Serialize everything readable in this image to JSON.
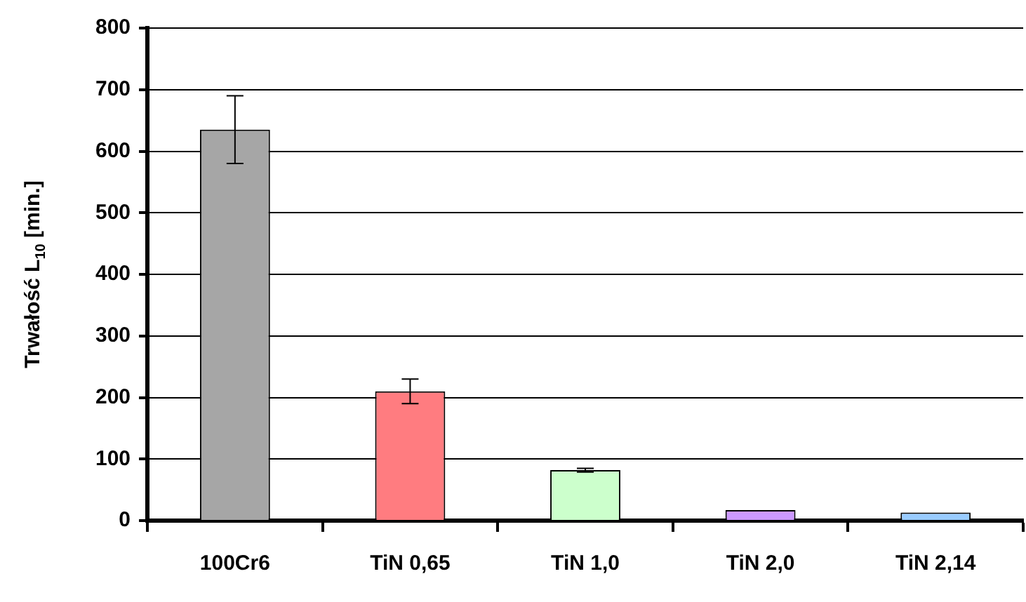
{
  "chart_data": {
    "type": "bar",
    "ylabel": "Trwałość L$_{10}$ [min.]",
    "categories": [
      "100Cr6",
      "TiN 0,65",
      "TiN 1,0",
      "TiN 2,0",
      "TiN 2,14"
    ],
    "values": [
      635,
      210,
      82,
      17,
      13
    ],
    "colors": [
      "#a6a6a6",
      "#ff7c80",
      "#ccffcc",
      "#cc99ff",
      "#99ccff"
    ],
    "errors": [
      55,
      20,
      3,
      null,
      null
    ],
    "ylim": [
      0,
      800
    ],
    "yticks": [
      0,
      100,
      200,
      300,
      400,
      500,
      600,
      700,
      800
    ],
    "grid": "y"
  }
}
